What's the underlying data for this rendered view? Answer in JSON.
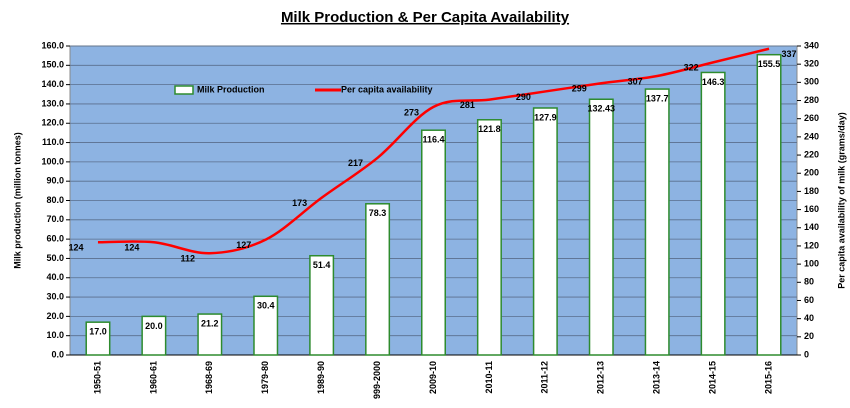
{
  "chart_data": {
    "type": "bar",
    "title": "Milk Production & Per Capita Availability",
    "y_label": "Milk production (million tonnes)",
    "y2_label": "Per capita availability of milk (grams/day)",
    "categories": [
      "1950-51",
      "1960-61",
      "1968-69",
      "1979-80",
      "1989-90",
      "999-2000",
      "2009-10",
      "2010-11",
      "2011-12",
      "2012-13",
      "2013-14",
      "2014-15",
      "2015-16"
    ],
    "series": [
      {
        "name": "Milk Production",
        "type": "bar",
        "color": "#ffffff",
        "edge": "#2e8b2e",
        "values": [
          17.0,
          20.0,
          21.2,
          30.4,
          51.4,
          78.3,
          116.4,
          121.8,
          127.9,
          132.43,
          137.7,
          146.3,
          155.5
        ],
        "value_labels": [
          "17.0",
          "20.0",
          "21.2",
          "30.4",
          "51.4",
          "78.3",
          "116.4",
          "121.8",
          "127.9",
          "132.43",
          "137.7",
          "146.3",
          "155.5"
        ]
      },
      {
        "name": "Per capita availability",
        "type": "line",
        "axis": "y2",
        "color": "#ff0000",
        "values": [
          124,
          124,
          112,
          127,
          173,
          217,
          273,
          281,
          290,
          299,
          307,
          322,
          337
        ]
      }
    ],
    "ylim": [
      0,
      160
    ],
    "yticks": [
      {
        "value": 0,
        "label": "0.0"
      },
      {
        "value": 10,
        "label": "10.0"
      },
      {
        "value": 20,
        "label": "20.0"
      },
      {
        "value": 30,
        "label": "30.0"
      },
      {
        "value": 40,
        "label": "40.0"
      },
      {
        "value": 50,
        "label": "50.0"
      },
      {
        "value": 60,
        "label": "60.0"
      },
      {
        "value": 70,
        "label": "70.0"
      },
      {
        "value": 80,
        "label": "80.0"
      },
      {
        "value": 90,
        "label": "90.0"
      },
      {
        "value": 100,
        "label": "100.0"
      },
      {
        "value": 110,
        "label": "110.0"
      },
      {
        "value": 120,
        "label": "120.0"
      },
      {
        "value": 130,
        "label": "130.0"
      },
      {
        "value": 140,
        "label": "140.0"
      },
      {
        "value": 150,
        "label": "150.0"
      },
      {
        "value": 160,
        "label": "160.0"
      }
    ],
    "y2lim": [
      0,
      340
    ],
    "y2ticks": [
      0,
      20,
      40,
      60,
      80,
      100,
      120,
      140,
      160,
      180,
      200,
      220,
      240,
      260,
      280,
      300,
      320,
      340
    ],
    "grid": true,
    "plot_background": "#8db3e2"
  }
}
